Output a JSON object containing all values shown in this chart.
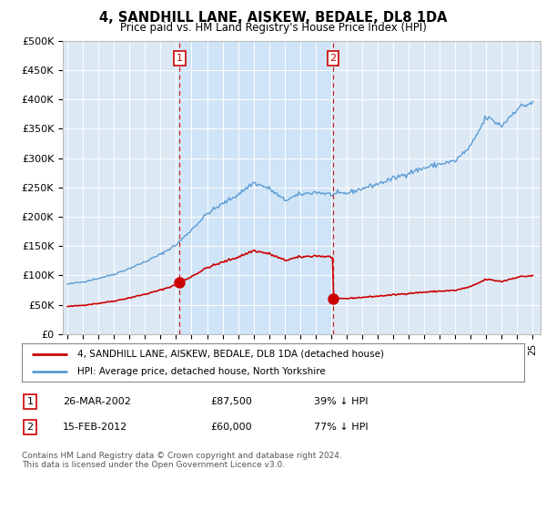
{
  "title": "4, SANDHILL LANE, AISKEW, BEDALE, DL8 1DA",
  "subtitle": "Price paid vs. HM Land Registry's House Price Index (HPI)",
  "ylim": [
    0,
    500000
  ],
  "yticks": [
    0,
    50000,
    100000,
    150000,
    200000,
    250000,
    300000,
    350000,
    400000,
    450000,
    500000
  ],
  "ytick_labels": [
    "£0",
    "£50K",
    "£100K",
    "£150K",
    "£200K",
    "£250K",
    "£300K",
    "£350K",
    "£400K",
    "£450K",
    "£500K"
  ],
  "hpi_color": "#5b9bd5",
  "price_color": "#cc0000",
  "bg_color": "#dce9f5",
  "shade_color": "#d0e4f7",
  "transaction1_year": 2002.233,
  "transaction1_price": 87500,
  "transaction2_year": 2012.124,
  "transaction2_price": 60000,
  "legend_line1": "4, SANDHILL LANE, AISKEW, BEDALE, DL8 1DA (detached house)",
  "legend_line2": "HPI: Average price, detached house, North Yorkshire",
  "table_row1": [
    "1",
    "26-MAR-2002",
    "£87,500",
    "39% ↓ HPI"
  ],
  "table_row2": [
    "2",
    "15-FEB-2012",
    "£60,000",
    "77% ↓ HPI"
  ],
  "footer": "Contains HM Land Registry data © Crown copyright and database right 2024.\nThis data is licensed under the Open Government Licence v3.0.",
  "xmin": 1994.7,
  "xmax": 2025.5
}
